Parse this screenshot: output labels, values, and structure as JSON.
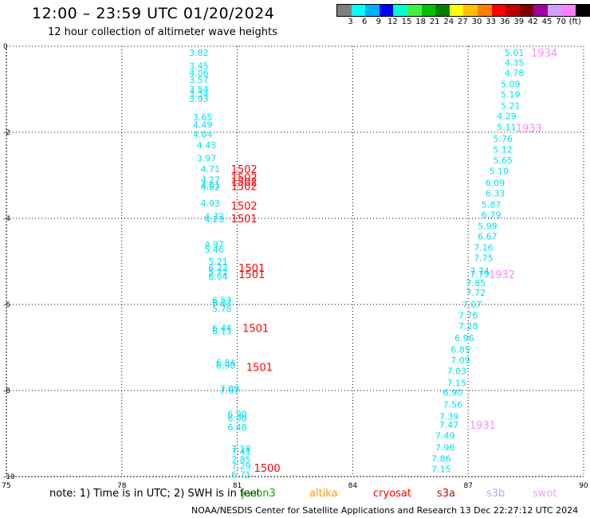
{
  "title": "12:00 – 23:59 UTC 01/20/2024",
  "subtitle": "12 hour collection of altimeter wave heights",
  "legend": {
    "colors": [
      "#808080",
      "#00ffff",
      "#00b0ff",
      "#0000ff",
      "#00ffd0",
      "#40f040",
      "#00c000",
      "#008000",
      "#ffff00",
      "#ffc000",
      "#ff8000",
      "#ff0000",
      "#c00000",
      "#800000",
      "#a000a0",
      "#d0a0ff",
      "#ff80ff",
      "#000000"
    ],
    "labels": [
      "3",
      "6",
      "9",
      "12",
      "15",
      "18",
      "21",
      "24",
      "27",
      "30",
      "33",
      "36",
      "39",
      "42",
      "45",
      "70",
      "(ft)"
    ]
  },
  "note": "note:  1) Time is in UTC;  2) SWH is in feet",
  "satellites": [
    {
      "name": "jason3",
      "color": "#00aa00"
    },
    {
      "name": "altika",
      "color": "#ff9900"
    },
    {
      "name": "cryosat",
      "color": "#ff0000"
    },
    {
      "name": "s3a",
      "color": "#cc0000"
    },
    {
      "name": "s3b",
      "color": "#c0a0ff"
    },
    {
      "name": "swot",
      "color": "#ff99ff"
    }
  ],
  "footer": "NOAA/NESDIS Center for Satellite Applications and Research    13 Dec 22:27:12 UTC 2024",
  "map": {
    "x_ticks": [
      "75",
      "78",
      "81",
      "84",
      "87",
      "90"
    ],
    "y_ticks": [
      "0",
      "-2",
      "-4",
      "-6",
      "-8",
      "-10"
    ],
    "lon_range": [
      75,
      90
    ],
    "lat_range": [
      -10,
      0
    ],
    "grid": "dotted",
    "swh_color": "#00e0f0",
    "time_color_red": "#ff0000",
    "time_color_pink": "#ff88ff",
    "track_west": [
      {
        "lon": 80.0,
        "lat": -0.15,
        "v": "3.82"
      },
      {
        "lon": 80.0,
        "lat": -0.45,
        "v": "3.45"
      },
      {
        "lon": 80.0,
        "lat": -0.62,
        "v": "4.06"
      },
      {
        "lon": 80.0,
        "lat": -0.78,
        "v": "3.57"
      },
      {
        "lon": 80.0,
        "lat": -1.0,
        "v": "3.54"
      },
      {
        "lon": 80.0,
        "lat": -1.1,
        "v": "3.34"
      },
      {
        "lon": 80.0,
        "lat": -1.22,
        "v": "3.93"
      },
      {
        "lon": 80.1,
        "lat": -1.65,
        "v": "3.65"
      },
      {
        "lon": 80.1,
        "lat": -1.82,
        "v": "4.49"
      },
      {
        "lon": 80.1,
        "lat": -2.05,
        "v": "4.04"
      },
      {
        "lon": 80.2,
        "lat": -2.3,
        "v": "4.43"
      },
      {
        "lon": 80.2,
        "lat": -2.6,
        "v": "3.97"
      },
      {
        "lon": 80.3,
        "lat": -2.85,
        "v": "4.71"
      },
      {
        "lon": 80.3,
        "lat": -3.1,
        "v": "4.27"
      },
      {
        "lon": 80.3,
        "lat": -3.22,
        "v": "4.01"
      },
      {
        "lon": 80.3,
        "lat": -3.27,
        "v": "4.82"
      },
      {
        "lon": 80.3,
        "lat": -3.65,
        "v": "4.93"
      },
      {
        "lon": 80.4,
        "lat": -3.95,
        "v": "4.72"
      },
      {
        "lon": 80.4,
        "lat": -4.02,
        "v": "4.23"
      },
      {
        "lon": 80.4,
        "lat": -4.6,
        "v": "4.97"
      },
      {
        "lon": 80.4,
        "lat": -4.72,
        "v": "5.46"
      },
      {
        "lon": 80.5,
        "lat": -5.0,
        "v": "5.21"
      },
      {
        "lon": 80.5,
        "lat": -5.15,
        "v": "6.22"
      },
      {
        "lon": 80.5,
        "lat": -5.25,
        "v": "5.72"
      },
      {
        "lon": 80.5,
        "lat": -5.35,
        "v": "6.04"
      },
      {
        "lon": 80.6,
        "lat": -5.9,
        "v": "6.53"
      },
      {
        "lon": 80.6,
        "lat": -5.96,
        "v": "6.67"
      },
      {
        "lon": 80.6,
        "lat": -6.1,
        "v": "5.78"
      },
      {
        "lon": 80.6,
        "lat": -6.55,
        "v": "6.44"
      },
      {
        "lon": 80.6,
        "lat": -6.62,
        "v": "6.13"
      },
      {
        "lon": 80.7,
        "lat": -7.35,
        "v": "6.84"
      },
      {
        "lon": 80.7,
        "lat": -7.42,
        "v": "6.90"
      },
      {
        "lon": 80.8,
        "lat": -7.95,
        "v": "7.09"
      },
      {
        "lon": 80.8,
        "lat": -8.0,
        "v": "7.67"
      },
      {
        "lon": 81.0,
        "lat": -8.55,
        "v": "6.90"
      },
      {
        "lon": 81.0,
        "lat": -8.65,
        "v": "6.90"
      },
      {
        "lon": 81.0,
        "lat": -8.85,
        "v": "6.48"
      },
      {
        "lon": 81.1,
        "lat": -9.35,
        "v": "7.18"
      },
      {
        "lon": 81.1,
        "lat": -9.42,
        "v": "7.41"
      },
      {
        "lon": 81.1,
        "lat": -9.6,
        "v": "7.85"
      },
      {
        "lon": 81.1,
        "lat": -9.75,
        "v": "7.29"
      },
      {
        "lon": 81.1,
        "lat": -9.95,
        "v": "6.71"
      }
    ],
    "track_east": [
      {
        "lon": 88.2,
        "lat": -0.15,
        "v": "5.01"
      },
      {
        "lon": 88.2,
        "lat": -0.38,
        "v": "4.35"
      },
      {
        "lon": 88.2,
        "lat": -0.62,
        "v": "4.78"
      },
      {
        "lon": 88.1,
        "lat": -0.88,
        "v": "5.09"
      },
      {
        "lon": 88.1,
        "lat": -1.12,
        "v": "5.19"
      },
      {
        "lon": 88.1,
        "lat": -1.38,
        "v": "5.21"
      },
      {
        "lon": 88.0,
        "lat": -1.62,
        "v": "4.29"
      },
      {
        "lon": 88.0,
        "lat": -1.88,
        "v": "5.11"
      },
      {
        "lon": 87.9,
        "lat": -2.15,
        "v": "5.76"
      },
      {
        "lon": 87.9,
        "lat": -2.4,
        "v": "5.12"
      },
      {
        "lon": 87.9,
        "lat": -2.65,
        "v": "5.65"
      },
      {
        "lon": 87.8,
        "lat": -2.9,
        "v": "5.10"
      },
      {
        "lon": 87.7,
        "lat": -3.18,
        "v": "6.09"
      },
      {
        "lon": 87.7,
        "lat": -3.42,
        "v": "6.33"
      },
      {
        "lon": 87.6,
        "lat": -3.68,
        "v": "5.87"
      },
      {
        "lon": 87.6,
        "lat": -3.92,
        "v": "6.79"
      },
      {
        "lon": 87.5,
        "lat": -4.18,
        "v": "5.99"
      },
      {
        "lon": 87.5,
        "lat": -4.42,
        "v": "6.67"
      },
      {
        "lon": 87.4,
        "lat": -4.68,
        "v": "7.16"
      },
      {
        "lon": 87.4,
        "lat": -4.92,
        "v": "7.75"
      },
      {
        "lon": 87.3,
        "lat": -5.22,
        "v": "7.74"
      },
      {
        "lon": 87.3,
        "lat": -5.3,
        "v": "7.79"
      },
      {
        "lon": 87.2,
        "lat": -5.5,
        "v": "7.85"
      },
      {
        "lon": 87.2,
        "lat": -5.72,
        "v": "7.72"
      },
      {
        "lon": 87.1,
        "lat": -6.0,
        "v": "7.07"
      },
      {
        "lon": 87.0,
        "lat": -6.25,
        "v": "7.76"
      },
      {
        "lon": 87.0,
        "lat": -6.5,
        "v": "7.28"
      },
      {
        "lon": 86.9,
        "lat": -6.78,
        "v": "6.96"
      },
      {
        "lon": 86.8,
        "lat": -7.05,
        "v": "6.85"
      },
      {
        "lon": 86.8,
        "lat": -7.3,
        "v": "7.09"
      },
      {
        "lon": 86.7,
        "lat": -7.55,
        "v": "7.03"
      },
      {
        "lon": 86.7,
        "lat": -7.82,
        "v": "7.15"
      },
      {
        "lon": 86.6,
        "lat": -8.05,
        "v": "6.90"
      },
      {
        "lon": 86.6,
        "lat": -8.32,
        "v": "7.56"
      },
      {
        "lon": 86.5,
        "lat": -8.6,
        "v": "7.39"
      },
      {
        "lon": 86.5,
        "lat": -8.8,
        "v": "7.47"
      },
      {
        "lon": 86.4,
        "lat": -9.05,
        "v": "7.49"
      },
      {
        "lon": 86.4,
        "lat": -9.32,
        "v": "7.96"
      },
      {
        "lon": 86.3,
        "lat": -9.58,
        "v": "7.86"
      },
      {
        "lon": 86.3,
        "lat": -9.82,
        "v": "7.15"
      }
    ],
    "times_west": [
      {
        "lon": 81.0,
        "lat": -2.85,
        "t": "1502"
      },
      {
        "lon": 81.0,
        "lat": -3.05,
        "t": "1502"
      },
      {
        "lon": 81.0,
        "lat": -3.15,
        "t": "1502"
      },
      {
        "lon": 81.0,
        "lat": -3.25,
        "t": "1502"
      },
      {
        "lon": 81.0,
        "lat": -3.7,
        "t": "1502"
      },
      {
        "lon": 81.0,
        "lat": -4.0,
        "t": "1501"
      },
      {
        "lon": 81.2,
        "lat": -5.15,
        "t": "1501"
      },
      {
        "lon": 81.2,
        "lat": -5.3,
        "t": "1501"
      },
      {
        "lon": 81.3,
        "lat": -6.55,
        "t": "1501"
      },
      {
        "lon": 81.4,
        "lat": -7.45,
        "t": "1501"
      },
      {
        "lon": 81.6,
        "lat": -9.8,
        "t": "1500"
      }
    ],
    "times_east": [
      {
        "lon": 88.8,
        "lat": -0.15,
        "t": "1934"
      },
      {
        "lon": 88.4,
        "lat": -1.9,
        "t": "1933"
      },
      {
        "lon": 87.7,
        "lat": -5.3,
        "t": "1932"
      },
      {
        "lon": 87.2,
        "lat": -8.8,
        "t": "1931"
      }
    ]
  }
}
